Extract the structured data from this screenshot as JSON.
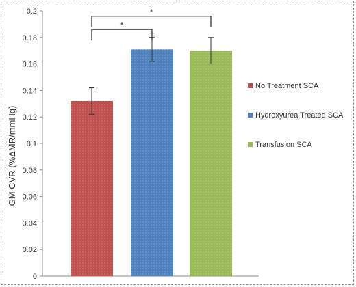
{
  "chart_data": {
    "type": "bar",
    "categories": [
      "No Treatment SCA",
      "Hydroxyurea Treated SCA",
      "Transfusion SCA"
    ],
    "values": [
      0.132,
      0.171,
      0.17
    ],
    "errors": [
      0.01,
      0.009,
      0.01
    ],
    "colors": [
      "#c0504d",
      "#4f81bd",
      "#9bbb59"
    ],
    "ylabel": "GM CVR (%ΔMR/mmHg)",
    "ylim": [
      0,
      0.2
    ],
    "yticks": [
      0,
      0.02,
      0.04,
      0.06,
      0.08,
      0.1,
      0.12,
      0.14,
      0.16,
      0.18,
      0.2
    ],
    "ytick_labels": [
      "0",
      "0.02",
      "0.04",
      "0.06",
      "0.08",
      "0.1",
      "0.12",
      "0.14",
      "0.16",
      "0.18",
      "0.2"
    ],
    "grid": false,
    "legend": {
      "placement": "right",
      "entries": [
        "No Treatment SCA",
        "Hydroxyurea Treated SCA",
        "Transfusion SCA"
      ]
    },
    "significance": [
      {
        "pair": [
          0,
          1
        ],
        "level": 0.186,
        "label": "*"
      },
      {
        "pair": [
          0,
          2
        ],
        "level": 0.196,
        "label": "*"
      }
    ]
  }
}
